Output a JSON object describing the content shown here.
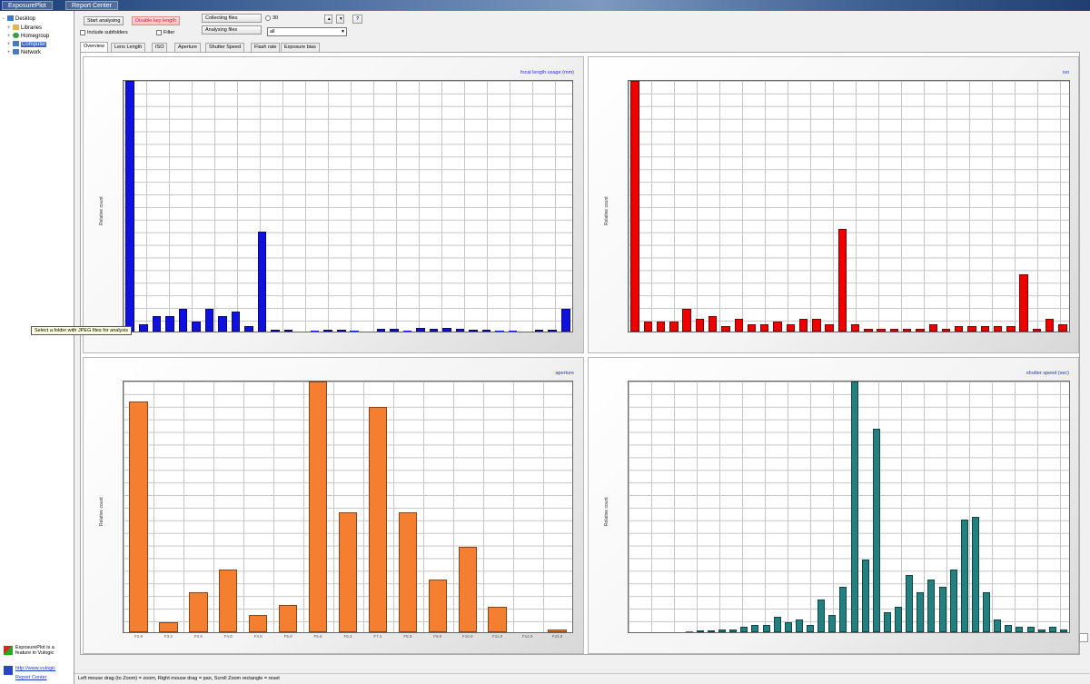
{
  "window": {
    "tabs": [
      "ExposurePlot",
      "Report Center"
    ]
  },
  "tree": {
    "items": [
      {
        "label": "Desktop",
        "icon": "desktop-icon",
        "color": "#3a79c8"
      },
      {
        "label": "Libraries",
        "icon": "folder-icon",
        "color": "#e2b845"
      },
      {
        "label": "Homegroup",
        "icon": "homegroup-icon",
        "color": "#3aa050"
      },
      {
        "label": "Computer",
        "icon": "computer-icon",
        "color": "#4a7ac0",
        "selected": true
      },
      {
        "label": "Network",
        "icon": "network-icon",
        "color": "#4a7ac0"
      }
    ]
  },
  "promo": {
    "line1": "ExposurePlot is a",
    "line2": "feature in Vulogic",
    "link1": "http://www.vulogic",
    "link2": "Report Center"
  },
  "toolbar": {
    "start": "Start analysing",
    "disable": "Disable key length",
    "include": "Include subfolders",
    "filter": "Filter",
    "collecting": "Collecting files",
    "analysing": "Analysing files",
    "count": "30",
    "level": "all",
    "help": "?"
  },
  "tabs": [
    "Overview",
    "Lens Length",
    "ISO",
    "Aperture",
    "Shutter Speed",
    "Flash rate",
    "Exposure bias"
  ],
  "tooltip": "Select a folder with JPEG files for analysis",
  "status": "Left mouse drag (to Zoom) = zoom, Right mouse drag = pan, Scroll Zoom rectangle = reset",
  "colors": {
    "lens": "#1010e0",
    "iso": "#ee0000",
    "aperture": "#f57f30",
    "shutter": "#228080"
  },
  "charts": {
    "lens": {
      "title": "focal length usage (mm)",
      "ylabel": "Relative count"
    },
    "iso": {
      "title": "iso",
      "ylabel": "Relative count"
    },
    "aperture": {
      "title": "aperture",
      "ylabel": "Relative count"
    },
    "shutter": {
      "title": "shutter speed (sec)",
      "ylabel": "Relative count"
    }
  },
  "chart_data": [
    {
      "type": "bar",
      "title": "focal length usage (mm)",
      "ylabel": "Relative count",
      "color": "#1010e0",
      "ylim": [
        0,
        100
      ],
      "values": [
        100,
        3,
        6,
        6,
        9,
        4,
        9,
        6,
        8,
        2,
        40,
        0.5,
        0.5,
        0,
        0.3,
        0.5,
        0.5,
        0.3,
        0,
        1,
        1,
        0.3,
        1.5,
        1,
        1.5,
        1,
        0.5,
        0.5,
        0.3,
        0.3,
        0,
        0.5,
        0.5,
        9
      ]
    },
    {
      "type": "bar",
      "title": "iso",
      "ylabel": "Relative count",
      "color": "#ee0000",
      "ylim": [
        0,
        100
      ],
      "values": [
        100,
        4,
        4,
        4,
        9,
        5,
        6,
        2,
        5,
        3,
        3,
        4,
        3,
        5,
        5,
        3,
        41,
        3,
        1,
        1,
        1,
        1,
        1,
        3,
        1,
        2,
        2,
        2,
        2,
        2,
        23,
        1,
        5,
        3
      ]
    },
    {
      "type": "bar",
      "title": "aperture",
      "ylabel": "Relative count",
      "color": "#f57f30",
      "ylim": [
        0,
        100
      ],
      "categories": [
        "F2.8",
        "F3.2",
        "F3.5",
        "F4.0",
        "F4.5",
        "F5.0",
        "F5.6",
        "F6.3",
        "F7.1",
        "F8.0",
        "F9.0",
        "F10.0",
        "F11.0",
        "F14.0",
        "F22.0"
      ],
      "values": [
        92,
        4,
        16,
        25,
        7,
        11,
        100,
        48,
        90,
        48,
        21,
        34,
        10,
        0,
        1
      ]
    },
    {
      "type": "bar",
      "title": "shutter speed (sec)",
      "ylabel": "Relative count",
      "color": "#228080",
      "ylim": [
        0,
        100
      ],
      "values": [
        0,
        0,
        0,
        0,
        0,
        0.3,
        0.5,
        0.8,
        1,
        1,
        2,
        3,
        3,
        6,
        4,
        5,
        3,
        13,
        7,
        18,
        100,
        29,
        81,
        8,
        10,
        23,
        16,
        21,
        18,
        25,
        45,
        46,
        16,
        5,
        3,
        2,
        2,
        1,
        2,
        1
      ]
    }
  ]
}
